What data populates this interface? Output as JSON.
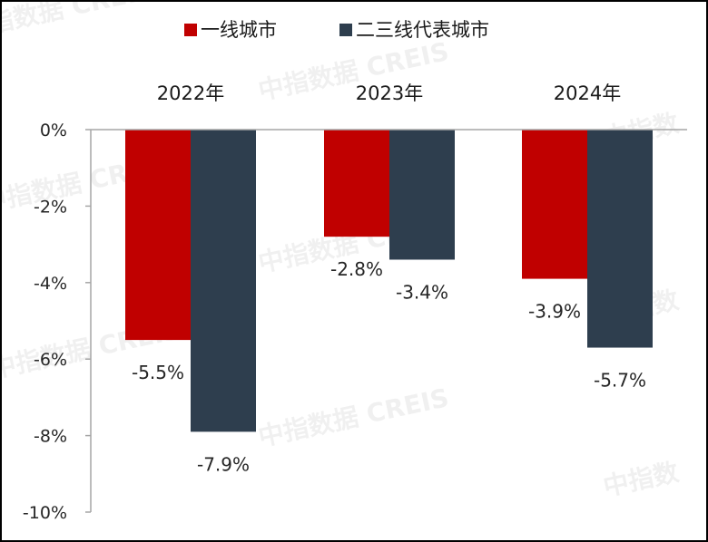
{
  "chart_data": {
    "type": "bar",
    "categories": [
      "2022年",
      "2023年",
      "2024年"
    ],
    "series": [
      {
        "name": "一线城市",
        "values": [
          -5.5,
          -2.8,
          -3.9
        ],
        "labels": [
          "-5.5%",
          "-2.8%",
          "-3.9%"
        ],
        "color": "#c00000"
      },
      {
        "name": "二三线代表城市",
        "values": [
          -7.9,
          -3.4,
          -5.7
        ],
        "labels": [
          "-7.9%",
          "-3.4%",
          "-5.7%"
        ],
        "color": "#2e3e4e"
      }
    ],
    "ylim": [
      -10,
      0
    ],
    "yticks": [
      0,
      -2,
      -4,
      -6,
      -8,
      -10
    ],
    "ytick_labels": [
      "0%",
      "-2%",
      "-4%",
      "-6%",
      "-8%",
      "-10%"
    ],
    "legend_position": "top",
    "category_labels_position": "top",
    "grid": false
  },
  "watermark": {
    "text": "中指数据 CREIS",
    "short_text": "中指数"
  },
  "colors": {
    "axis": "#a6a6a6",
    "text": "#262626",
    "border": "#000000"
  }
}
